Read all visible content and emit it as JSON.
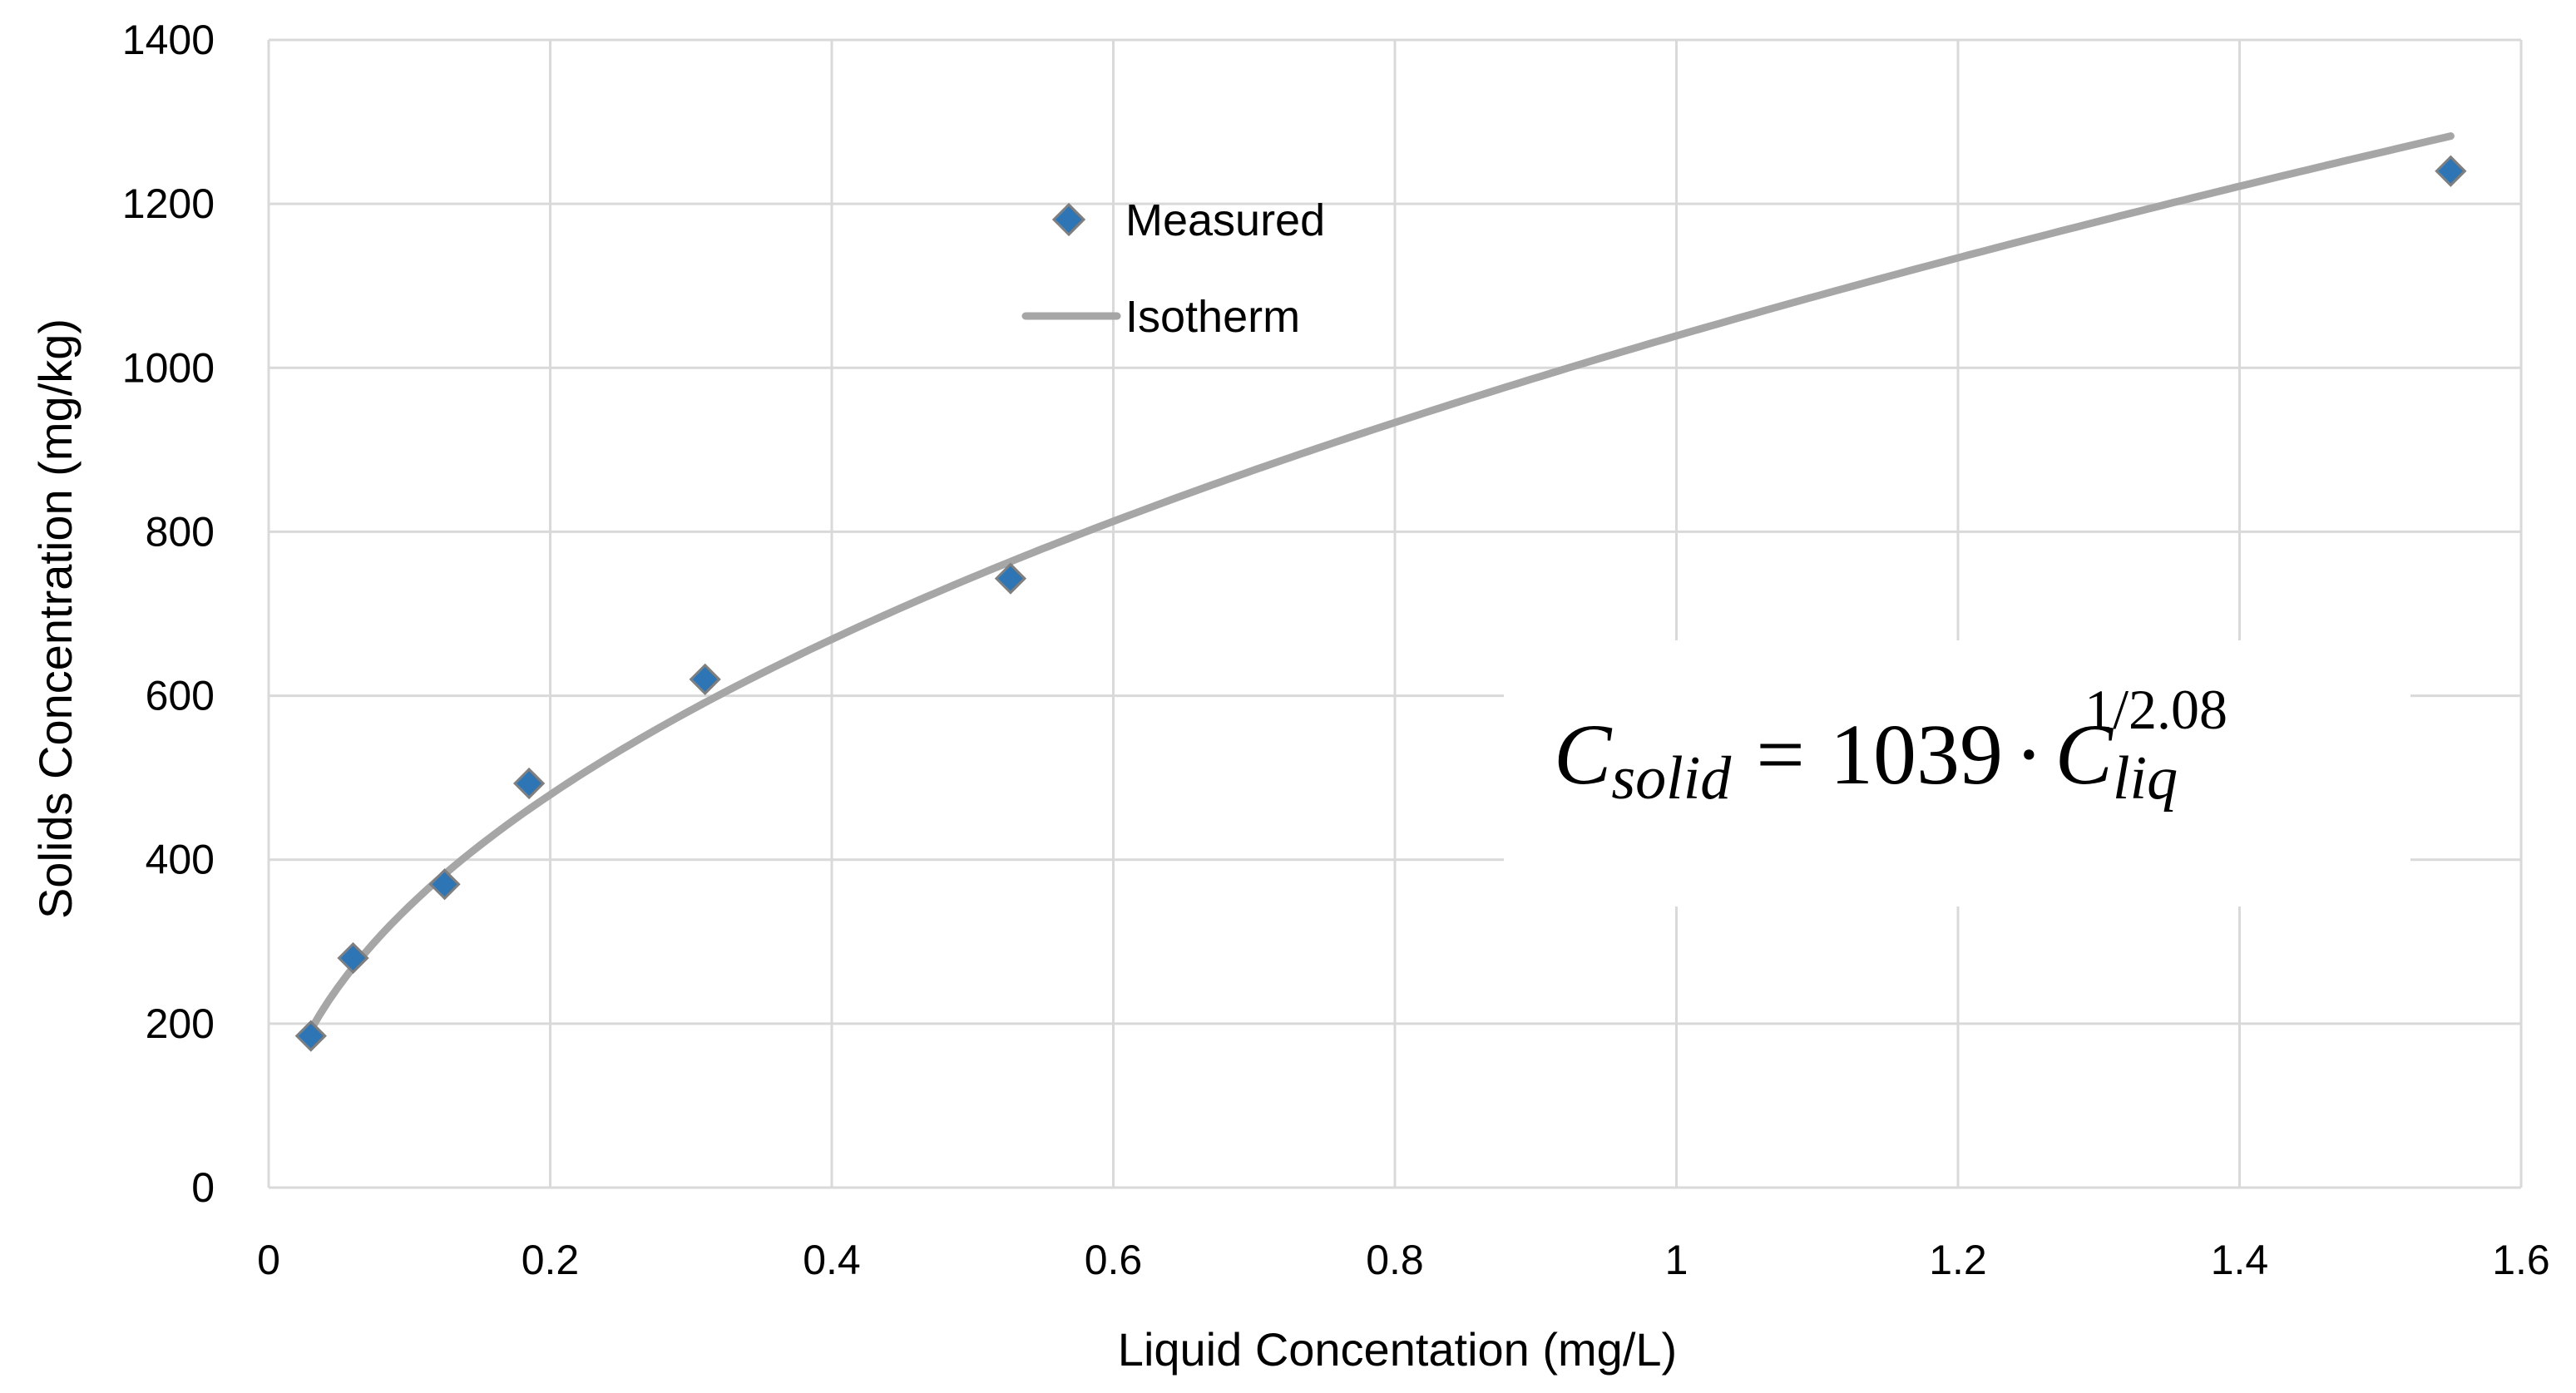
{
  "chart_data": {
    "type": "scatter",
    "title": "",
    "xlabel": "Liquid Concentation (mg/L)",
    "ylabel": "Solids Concentration (mg/kg)",
    "xlim": [
      0,
      1.6
    ],
    "ylim": [
      0,
      1400
    ],
    "xticks": [
      0,
      0.2,
      0.4,
      0.6,
      0.8,
      1.0,
      1.2,
      1.4,
      1.6
    ],
    "xtick_labels": [
      "0",
      "0.2",
      "0.4",
      "0.6",
      "0.8",
      "1",
      "1.2",
      "1.4",
      "1.6"
    ],
    "yticks": [
      0,
      200,
      400,
      600,
      800,
      1000,
      1200,
      1400
    ],
    "ytick_labels": [
      "0",
      "200",
      "400",
      "600",
      "800",
      "1000",
      "1200",
      "1400"
    ],
    "grid": true,
    "legend_position": "top-center",
    "series": [
      {
        "name": "Measured",
        "type": "scatter",
        "marker": "diamond",
        "color": "#2e75b6",
        "x": [
          0.03,
          0.06,
          0.125,
          0.185,
          0.31,
          0.527,
          1.55
        ],
        "y": [
          185,
          280,
          370,
          493,
          620,
          743,
          1240
        ]
      },
      {
        "name": "Isotherm",
        "type": "line",
        "color": "#a6a6a6",
        "model": {
          "coefficient": 1039,
          "exponent_denominator": 2.08,
          "x_start": 0.03,
          "x_end": 1.55
        }
      }
    ],
    "annotation": {
      "lhs": "C",
      "lhs_sub": "solid",
      "equals": "=",
      "coefficient": "1039",
      "dot": "·",
      "rhs": "C",
      "rhs_sub": "liq",
      "rhs_sup": "1/2.08"
    }
  }
}
